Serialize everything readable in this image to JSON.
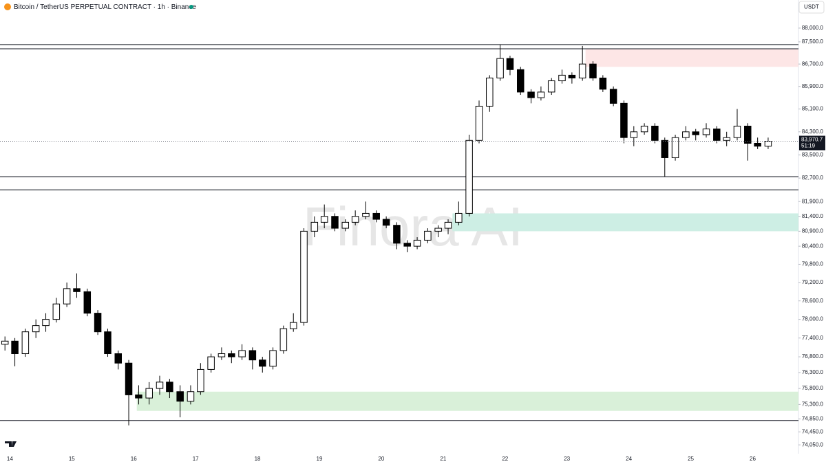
{
  "header": {
    "symbol": "Bitcoin / TetherUS PERPETUAL CONTRACT · 1h · Binance",
    "currency": "USDT"
  },
  "chart_data": {
    "type": "candlestick",
    "watermark": "Finora AI",
    "log": true,
    "last_price_label": "83,970.7",
    "countdown": "51:19",
    "x": [
      13.92,
      14.08,
      14.25,
      14.42,
      14.58,
      14.75,
      14.92,
      15.08,
      15.25,
      15.42,
      15.58,
      15.75,
      15.92,
      16.08,
      16.25,
      16.42,
      16.58,
      16.75,
      16.92,
      17.08,
      17.25,
      17.42,
      17.58,
      17.75,
      17.92,
      18.08,
      18.25,
      18.42,
      18.58,
      18.75,
      18.92,
      19.08,
      19.25,
      19.42,
      19.58,
      19.75,
      19.92,
      20.08,
      20.25,
      20.42,
      20.58,
      20.75,
      20.92,
      21.08,
      21.25,
      21.42,
      21.58,
      21.75,
      21.92,
      22.08,
      22.25,
      22.42,
      22.58,
      22.75,
      22.92,
      23.08,
      23.25,
      23.42,
      23.58,
      23.75,
      23.92,
      24.08,
      24.25,
      24.42,
      24.58,
      24.75,
      24.92,
      25.08,
      25.25,
      25.42,
      25.58,
      25.75,
      25.92,
      26.08,
      26.25
    ],
    "open": [
      77200,
      77300,
      76900,
      77600,
      77800,
      78000,
      78500,
      79000,
      78900,
      78200,
      77600,
      76900,
      76600,
      75600,
      75500,
      75800,
      76000,
      75700,
      75400,
      75700,
      76400,
      76800,
      76900,
      76800,
      77000,
      76700,
      76500,
      77000,
      77700,
      77900,
      80900,
      81200,
      81400,
      81000,
      81200,
      81400,
      81500,
      81300,
      81100,
      80500,
      80400,
      80600,
      80900,
      81000,
      81200,
      81500,
      84000,
      85200,
      86200,
      86900,
      86500,
      85700,
      85500,
      85700,
      86100,
      86300,
      86200,
      86700,
      86200,
      85800,
      85300,
      84100,
      84300,
      84500,
      84000,
      83400,
      84100,
      84300,
      84200,
      84400,
      84000,
      84100,
      84500,
      83900,
      83800
    ],
    "high": [
      77450,
      77400,
      77700,
      78000,
      78200,
      78700,
      79200,
      79500,
      79000,
      78300,
      77700,
      77000,
      76700,
      75900,
      76000,
      76200,
      76100,
      75900,
      75900,
      76600,
      76900,
      77100,
      77000,
      77200,
      77100,
      76800,
      77100,
      77800,
      78200,
      81000,
      81400,
      81800,
      81500,
      81300,
      81600,
      81900,
      81600,
      81400,
      81200,
      80600,
      80700,
      81000,
      81100,
      81300,
      81900,
      84200,
      85400,
      86300,
      87400,
      87000,
      86600,
      85800,
      85900,
      86200,
      86500,
      86400,
      87350,
      86800,
      86300,
      85900,
      85400,
      84500,
      84600,
      84600,
      84100,
      84200,
      84500,
      84400,
      84600,
      84500,
      84300,
      85100,
      84600,
      84100,
      84100
    ],
    "low": [
      77000,
      76500,
      76800,
      77400,
      77600,
      77900,
      78400,
      78700,
      78100,
      77500,
      76800,
      76400,
      74650,
      75300,
      75300,
      75600,
      75500,
      74900,
      75300,
      75600,
      76300,
      76700,
      76600,
      76700,
      76400,
      76300,
      76400,
      76900,
      77600,
      77800,
      80700,
      81000,
      80900,
      80900,
      81100,
      81300,
      81200,
      81000,
      80300,
      80200,
      80300,
      80500,
      80700,
      80800,
      81100,
      81400,
      83900,
      85000,
      86100,
      86300,
      85600,
      85300,
      85400,
      85600,
      86000,
      86000,
      86100,
      86100,
      85700,
      85200,
      83900,
      83800,
      84200,
      83900,
      82750,
      83300,
      84000,
      84000,
      84100,
      83900,
      83800,
      84000,
      83300,
      83700,
      83700
    ],
    "close": [
      77300,
      76900,
      77600,
      77800,
      78000,
      78500,
      79000,
      78900,
      78200,
      77600,
      76900,
      76600,
      75600,
      75500,
      75800,
      76000,
      75700,
      75400,
      75700,
      76400,
      76800,
      76900,
      76800,
      77000,
      76700,
      76500,
      77000,
      77700,
      77900,
      80900,
      81200,
      81400,
      81000,
      81200,
      81400,
      81500,
      81300,
      81100,
      80500,
      80400,
      80600,
      80900,
      81000,
      81200,
      81500,
      84000,
      85200,
      86200,
      86900,
      86500,
      85700,
      85500,
      85700,
      86100,
      86300,
      86200,
      86700,
      86200,
      85800,
      85300,
      84100,
      84300,
      84500,
      84000,
      83400,
      84100,
      84300,
      84200,
      84400,
      84000,
      84100,
      84500,
      83900,
      83800,
      83970.7
    ],
    "up_color": "#ffffff",
    "down_color": "#000000",
    "levels": [
      87400,
      87250,
      82750,
      82300,
      74800
    ],
    "zones": [
      {
        "from": 87250,
        "to": 86600,
        "start": 23.3,
        "color": "#fde6e6"
      },
      {
        "from": 81500,
        "to": 80900,
        "start": 21.15,
        "color": "#cdeee4"
      },
      {
        "from": 75700,
        "to": 75100,
        "start": 16.05,
        "color": "#d9f0d9"
      }
    ],
    "xlim": [
      13.84,
      26.74
    ],
    "xticks": [
      14,
      15,
      16,
      17,
      18,
      19,
      20,
      21,
      22,
      23,
      24,
      25,
      26
    ],
    "ylim": [
      73780,
      89030
    ],
    "yticks": [
      {
        "value": 88000,
        "label": "88,000.0"
      },
      {
        "value": 87500,
        "label": "87,500.0"
      },
      {
        "value": 86700,
        "label": "86,700.0"
      },
      {
        "value": 85900,
        "label": "85,900.0"
      },
      {
        "value": 85100,
        "label": "85,100.0"
      },
      {
        "value": 84300,
        "label": "84,300.0"
      },
      {
        "value": 83500,
        "label": "83,500.0"
      },
      {
        "value": 82700,
        "label": "82,700.0"
      },
      {
        "value": 81900,
        "label": "81,900.0"
      },
      {
        "value": 81400,
        "label": "81,400.0"
      },
      {
        "value": 80900,
        "label": "80,900.0"
      },
      {
        "value": 80400,
        "label": "80,400.0"
      },
      {
        "value": 79800,
        "label": "79,800.0"
      },
      {
        "value": 79200,
        "label": "79,200.0"
      },
      {
        "value": 78600,
        "label": "78,600.0"
      },
      {
        "value": 78000,
        "label": "78,000.0"
      },
      {
        "value": 77400,
        "label": "77,400.0"
      },
      {
        "value": 76800,
        "label": "76,800.0"
      },
      {
        "value": 76300,
        "label": "76,300.0"
      },
      {
        "value": 75800,
        "label": "75,800.0"
      },
      {
        "value": 75300,
        "label": "75,300.0"
      },
      {
        "value": 74850,
        "label": "74,850.0"
      },
      {
        "value": 74450,
        "label": "74,450.0"
      },
      {
        "value": 74050,
        "label": "74,050.0"
      }
    ]
  }
}
